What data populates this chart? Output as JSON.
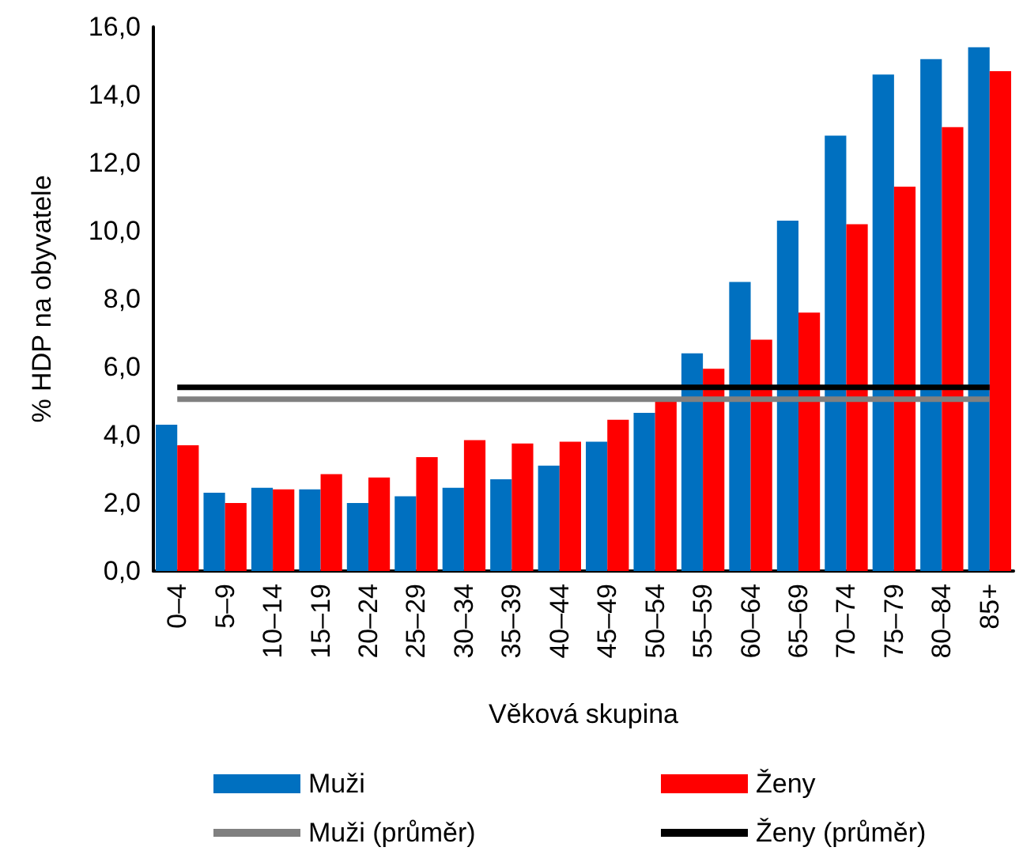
{
  "chart_data": {
    "type": "bar",
    "xlabel": "Věková skupina",
    "ylabel": "% HDP na obyvatele",
    "categories": [
      "0–4",
      "5–9",
      "10–14",
      "15–19",
      "20–24",
      "25–29",
      "30–34",
      "35–39",
      "40–44",
      "45–49",
      "50–54",
      "55–59",
      "60–64",
      "65–69",
      "70–74",
      "75–79",
      "80–84",
      "85+"
    ],
    "series": [
      {
        "name": "Muži",
        "color": "#0070c0",
        "values": [
          4.3,
          2.3,
          2.45,
          2.4,
          2.0,
          2.2,
          2.45,
          2.7,
          3.1,
          3.8,
          4.65,
          6.4,
          8.5,
          10.3,
          12.8,
          14.6,
          15.05,
          15.4
        ]
      },
      {
        "name": "Ženy",
        "color": "#ff0000",
        "values": [
          3.7,
          2.0,
          2.4,
          2.85,
          2.75,
          3.35,
          3.85,
          3.75,
          3.8,
          4.45,
          5.0,
          5.95,
          6.8,
          7.6,
          10.2,
          11.3,
          13.05,
          14.7
        ]
      },
      {
        "name": "Muži (průměr)",
        "type": "line",
        "color": "#808080",
        "values": [
          5.05,
          5.05,
          5.05,
          5.05,
          5.05,
          5.05,
          5.05,
          5.05,
          5.05,
          5.05,
          5.05,
          5.05,
          5.05,
          5.05,
          5.05,
          5.05,
          5.05,
          5.05
        ]
      },
      {
        "name": "Ženy (průměr)",
        "type": "line",
        "color": "#000000",
        "values": [
          5.4,
          5.4,
          5.4,
          5.4,
          5.4,
          5.4,
          5.4,
          5.4,
          5.4,
          5.4,
          5.4,
          5.4,
          5.4,
          5.4,
          5.4,
          5.4,
          5.4,
          5.4
        ]
      }
    ],
    "ylim": [
      0,
      16
    ],
    "yticks": [
      {
        "value": 0,
        "label": "0,0"
      },
      {
        "value": 2,
        "label": "2,0"
      },
      {
        "value": 4,
        "label": "4,0"
      },
      {
        "value": 6,
        "label": "6,0"
      },
      {
        "value": 8,
        "label": "8,0"
      },
      {
        "value": 10,
        "label": "10,0"
      },
      {
        "value": 12,
        "label": "12,0"
      },
      {
        "value": 14,
        "label": "14,0"
      },
      {
        "value": 16,
        "label": "16,0"
      }
    ],
    "legend": "bottom",
    "grid": false,
    "marker": "none"
  }
}
